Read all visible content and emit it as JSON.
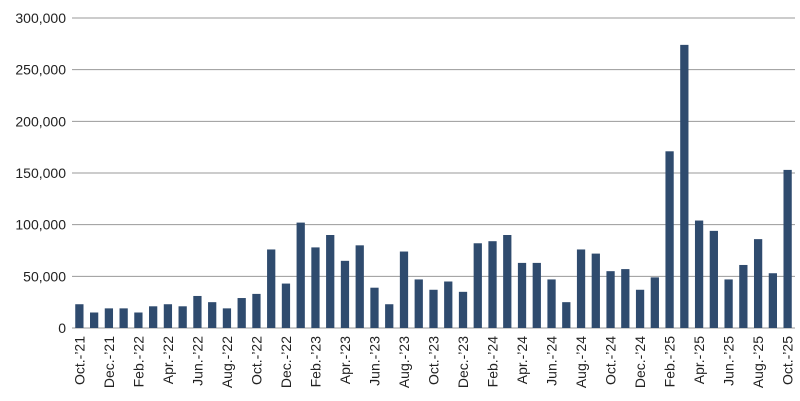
{
  "chart_data": {
    "type": "bar",
    "categories": [
      "Oct.-’21",
      null,
      "Dec.-’21",
      null,
      "Feb.-’22",
      null,
      "Apr.-’22",
      null,
      "Jun.-’22",
      null,
      "Aug.-’22",
      null,
      "Oct.-’22",
      null,
      "Dec.-’22",
      null,
      "Feb.-’23",
      null,
      "Apr.-’23",
      null,
      "Jun.-’23",
      null,
      "Aug.-’23",
      null,
      "Oct.-’23",
      null,
      "Dec.-’23",
      null,
      "Feb.-’24",
      null,
      "Apr.-’24",
      null,
      "Jun.-’24",
      null,
      "Aug.-’24",
      null,
      "Oct.-’24",
      null,
      "Dec.-’24",
      null,
      "Feb.-’25",
      null,
      "Apr.-’25",
      null,
      "Jun.-’25",
      null,
      "Aug.-’25",
      null,
      "Oct.-’25"
    ],
    "values": [
      23000,
      15000,
      19000,
      19000,
      15000,
      21000,
      23000,
      21000,
      31000,
      25000,
      19000,
      29000,
      33000,
      76000,
      43000,
      102000,
      78000,
      90000,
      65000,
      80000,
      39000,
      23000,
      74000,
      47000,
      37000,
      45000,
      35000,
      82000,
      84000,
      90000,
      63000,
      63000,
      47000,
      25000,
      76000,
      72000,
      55000,
      57000,
      37000,
      49000,
      171000,
      274000,
      104000,
      94000,
      47000,
      61000,
      86000,
      53000,
      153000
    ],
    "color": "#2f4b6e",
    "ylim": [
      0,
      300000
    ],
    "yticks": [
      0,
      {
        "value": 50000,
        "label": "50,000"
      },
      {
        "value": 100000,
        "label": "100,000"
      },
      {
        "value": 150000,
        "label": "150,000"
      },
      {
        "value": 200000,
        "label": "200,000"
      },
      {
        "value": 250000,
        "label": "250,000"
      },
      {
        "value": 300000,
        "label": "300,000"
      }
    ],
    "grid": true
  }
}
